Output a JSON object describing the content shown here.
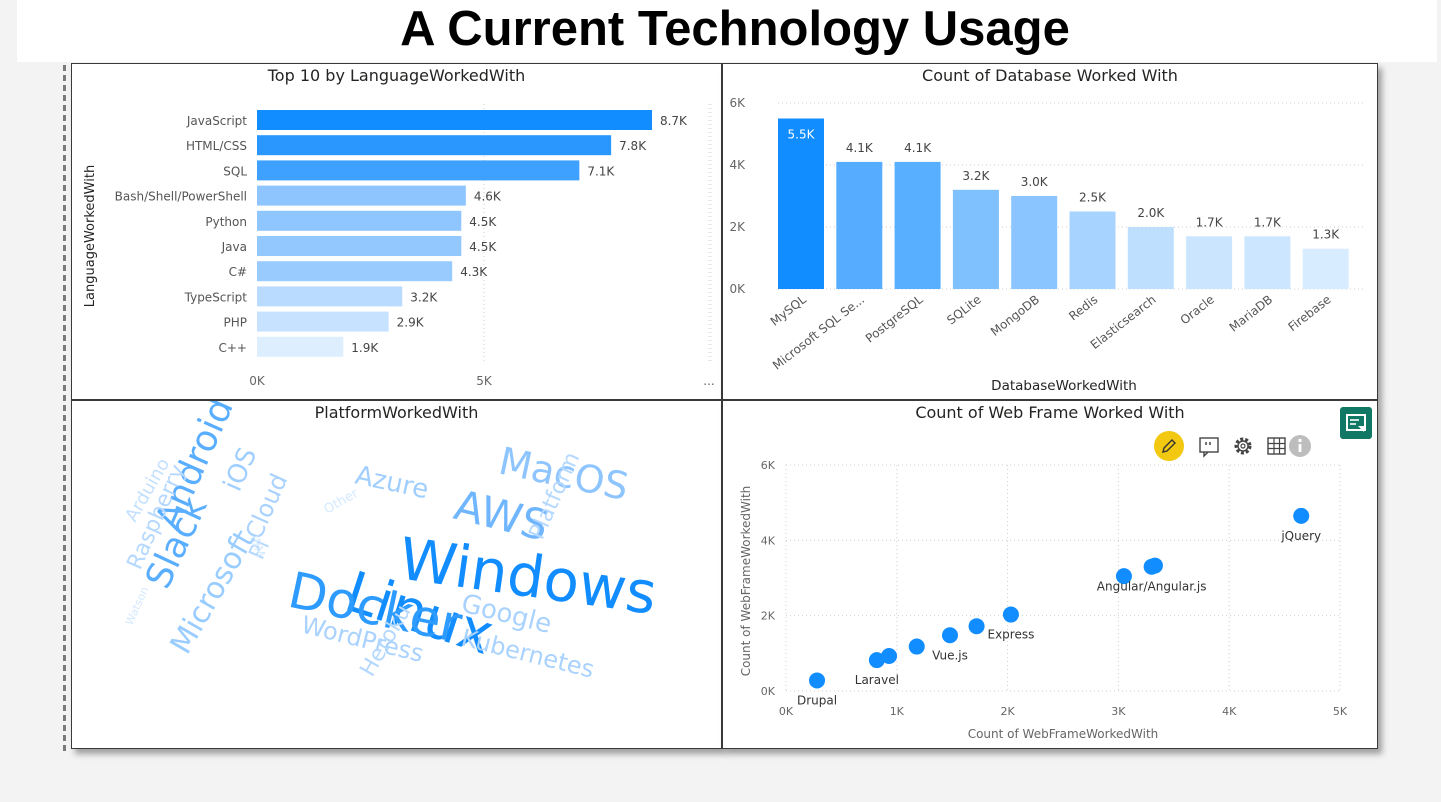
{
  "page": {
    "title": "A Current Technology Usage"
  },
  "panels": {
    "language": {
      "title": "Top 10 by LanguageWorkedWith",
      "ylabel": "LanguageWorkedWith",
      "more": "..."
    },
    "database": {
      "title": "Count of Database Worked With",
      "xlabel": "DatabaseWorkedWith"
    },
    "platform": {
      "title": "PlatformWorkedWith"
    },
    "webframe": {
      "title": "Count of Web Frame Worked With"
    }
  },
  "toolbar": {
    "icons": [
      "pencil-icon",
      "comment-icon",
      "gear-icon",
      "table-icon",
      "info-icon"
    ]
  },
  "colors": {
    "dark": "#118dff",
    "mid": "#4aa8ff",
    "light": "#a9d2ff",
    "pale": "#dceeff",
    "title": "#252423"
  },
  "chart_data": [
    {
      "type": "bar",
      "orientation": "horizontal",
      "title": "Top 10 by LanguageWorkedWith",
      "ylabel": "LanguageWorkedWith",
      "categories": [
        "JavaScript",
        "HTML/CSS",
        "SQL",
        "Bash/Shell/PowerShell",
        "Python",
        "Java",
        "C#",
        "TypeScript",
        "PHP",
        "C++"
      ],
      "values": [
        8700,
        7800,
        7100,
        4600,
        4500,
        4500,
        4300,
        3200,
        2900,
        1900
      ],
      "labels": [
        "8.7K",
        "7.8K",
        "7.1K",
        "4.6K",
        "4.5K",
        "4.5K",
        "4.3K",
        "3.2K",
        "2.9K",
        "1.9K"
      ],
      "xticks": [
        "0K",
        "5K"
      ],
      "xlim": [
        0,
        10000
      ]
    },
    {
      "type": "bar",
      "title": "Count of Database Worked With",
      "xlabel": "DatabaseWorkedWith",
      "categories": [
        "MySQL",
        "Microsoft SQL Se...",
        "PostgreSQL",
        "SQLite",
        "MongoDB",
        "Redis",
        "Elasticsearch",
        "Oracle",
        "MariaDB",
        "Firebase"
      ],
      "values": [
        5500,
        4100,
        4100,
        3200,
        3000,
        2500,
        2000,
        1700,
        1700,
        1300
      ],
      "labels": [
        "5.5K",
        "4.1K",
        "4.1K",
        "3.2K",
        "3.0K",
        "2.5K",
        "2.0K",
        "1.7K",
        "1.7K",
        "1.3K"
      ],
      "yticks": [
        "0K",
        "2K",
        "4K",
        "6K"
      ],
      "ylim": [
        0,
        6000
      ]
    },
    {
      "type": "wordcloud",
      "title": "PlatformWorkedWith",
      "words": [
        "Windows",
        "Linux",
        "Docker",
        "AWS",
        "MacOS",
        "Android",
        "Slack",
        "Microsoft",
        "Azure",
        "Google",
        "Kubernetes",
        "WordPress",
        "Heroku",
        "Raspberry",
        "Arduino",
        "iOS",
        "Cloud",
        "Platform",
        "Pi",
        "IBM",
        "Other",
        "Watson"
      ]
    },
    {
      "type": "scatter",
      "title": "Count of Web Frame Worked With",
      "xlabel": "Count of WebFrameWorkedWith",
      "ylabel": "Count of WebFrameWorkedWith",
      "xticks": [
        "0K",
        "1K",
        "2K",
        "3K",
        "4K",
        "5K"
      ],
      "yticks": [
        "0K",
        "2K",
        "4K",
        "6K"
      ],
      "xlim": [
        0,
        5000
      ],
      "ylim": [
        0,
        6000
      ],
      "points": [
        {
          "x": 280,
          "y": 280,
          "label": "Drupal"
        },
        {
          "x": 820,
          "y": 820,
          "label": "Laravel"
        },
        {
          "x": 930,
          "y": 930,
          "label": ""
        },
        {
          "x": 1180,
          "y": 1180,
          "label": ""
        },
        {
          "x": 1480,
          "y": 1480,
          "label": "Vue.js"
        },
        {
          "x": 1720,
          "y": 1720,
          "label": ""
        },
        {
          "x": 2030,
          "y": 2030,
          "label": "Express"
        },
        {
          "x": 3050,
          "y": 3050,
          "label": ""
        },
        {
          "x": 3300,
          "y": 3300,
          "label": "Angular/Angular.js"
        },
        {
          "x": 3330,
          "y": 3330,
          "label": ""
        },
        {
          "x": 4650,
          "y": 4650,
          "label": "jQuery"
        }
      ]
    }
  ]
}
